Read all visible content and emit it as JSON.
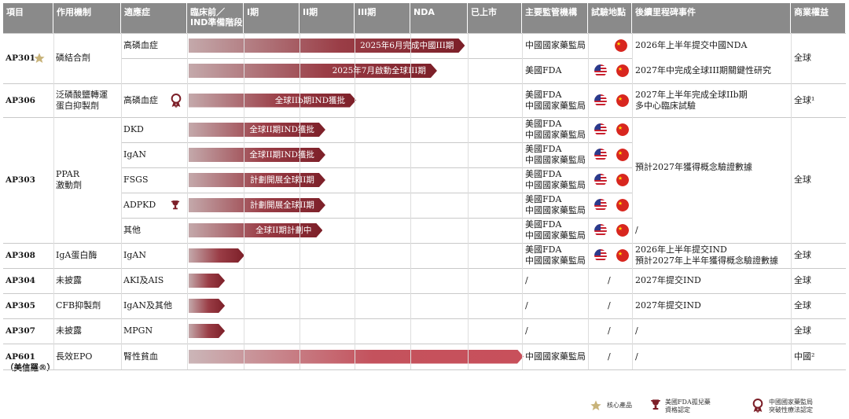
{
  "headers": [
    "項目",
    "作用機制",
    "適應症",
    "臨床前／\nIND準備階段",
    "I期",
    "II期",
    "III期",
    "NDA",
    "已上市",
    "主要監管機構",
    "試驗地點",
    "後續里程碑事件",
    "商業權益"
  ],
  "rows": [
    {
      "project": "AP301",
      "mechanism": "磷結合劑",
      "indications": [
        {
          "name": "高磷血症",
          "bar": "2025年6月完成中國III期",
          "stage_end": 4.95,
          "reg": "中國國家藥監局",
          "flags": [
            "cn"
          ],
          "milestone": "2026年上半年提交中國NDA"
        },
        {
          "name": "",
          "bar": "2025年7月啟動全球III期",
          "stage_end": 4.45,
          "reg": "美國FDA",
          "flags": [
            "us",
            "cn"
          ],
          "milestone": "2027年中完成全球III期關鍵性研究"
        }
      ],
      "rights": "全球"
    },
    {
      "project": "AP306",
      "mechanism": "泛磷酸鹽轉運\n蛋白抑製劑",
      "indications": [
        {
          "name": "高磷血症",
          "bar": "全球IIb期IND獲批",
          "stage_end": 3.0,
          "reg": "美國FDA\n中國國家藥監局",
          "flags": [
            "us",
            "cn"
          ],
          "milestone": "2027年上半年完成全球IIb期\n多中心臨床試驗"
        }
      ],
      "rights": "全球¹"
    },
    {
      "project": "AP303",
      "mechanism": "PPAR\n激動劑",
      "indications": [
        {
          "name": "DKD",
          "bar": "全球II期IND獲批",
          "stage_end": 2.45,
          "reg": "美國FDA\n中國國家藥監局",
          "flags": [
            "us",
            "cn"
          ]
        },
        {
          "name": "IgAN",
          "bar": "全球II期IND獲批",
          "stage_end": 2.45,
          "reg": "美國FDA\n中國國家藥監局",
          "flags": [
            "us",
            "cn"
          ]
        },
        {
          "name": "FSGS",
          "bar": "計劃開展全球II期",
          "stage_end": 2.45,
          "reg": "美國FDA\n中國國家藥監局",
          "flags": [
            "us",
            "cn"
          ]
        },
        {
          "name": "ADPKD",
          "bar": "計劃開展全球II期",
          "stage_end": 2.45,
          "reg": "美國FDA\n中國國家藥監局",
          "flags": [
            "us",
            "cn"
          ]
        },
        {
          "name": "其他",
          "bar": "全球II期計劃中",
          "stage_end": 2.4,
          "reg": "美國FDA\n中國國家藥監局",
          "flags": [
            "us",
            "cn"
          ],
          "milestone": "/"
        }
      ],
      "milestone_group": "預計2027年獲得概念驗證數據",
      "rights": "全球"
    },
    {
      "project": "AP308",
      "mechanism": "IgA蛋白酶",
      "indications": [
        {
          "name": "IgAN",
          "bar": "",
          "stage_end": 1.0,
          "reg": "美國FDA\n中國國家藥監局",
          "flags": [
            "us",
            "cn"
          ],
          "milestone": "2026年上半年提交IND\n預計2027年上半年獲得概念驗證數據"
        }
      ],
      "rights": "全球"
    },
    {
      "project": "AP304",
      "mechanism": "未披露",
      "indications": [
        {
          "name": "AKI及AIS",
          "bar": "",
          "stage_end": 0.65,
          "reg": "/",
          "site": "/",
          "milestone": "2027年提交IND"
        }
      ],
      "rights": "全球"
    },
    {
      "project": "AP305",
      "mechanism": "CFB抑製劑",
      "indications": [
        {
          "name": "IgAN及其他",
          "bar": "",
          "stage_end": 0.65,
          "reg": "/",
          "site": "/",
          "milestone": "2027年提交IND"
        }
      ],
      "rights": "全球"
    },
    {
      "project": "AP307",
      "mechanism": "未披露",
      "indications": [
        {
          "name": "MPGN",
          "bar": "",
          "stage_end": 0.65,
          "reg": "/",
          "site": "/",
          "milestone": "/"
        }
      ],
      "rights": "全球"
    },
    {
      "project": "AP601\n（美信羅®）",
      "mechanism": "長效EPO",
      "indications": [
        {
          "name": "腎性貧血",
          "bar": "",
          "stage_end": 6.0,
          "reg": "中國國家藥監局",
          "site": "/",
          "milestone": "/"
        }
      ],
      "rights": "中國²"
    }
  ],
  "legend": {
    "core": "核心產品",
    "fda_orphan": "美國FDA孤兒藥\n資格認定",
    "nmpa_btd": "中國國家藥監局\n突破性療法認定"
  },
  "colors": {
    "header": "#8a8a8a",
    "bar_dark": "#7c1f28",
    "bar_light": "#c4a9ab",
    "star": "#c8b37a"
  }
}
